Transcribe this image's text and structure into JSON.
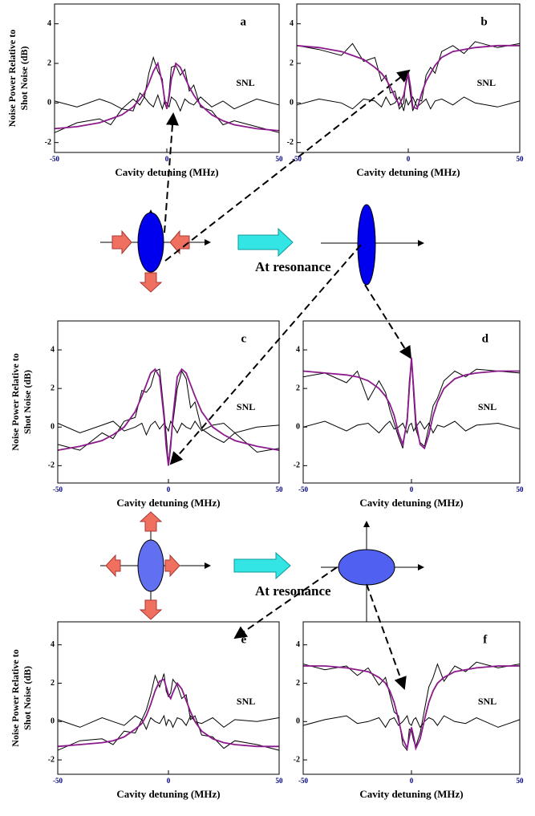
{
  "chart_data": [
    {
      "type": "line",
      "label": "a",
      "xlabel": "Cavity detuning (MHz)",
      "ylabel": [
        "Noise Power Relative to",
        "Shot Noise (dB)"
      ],
      "annotation": "SNL",
      "x": [
        -50,
        -40,
        -30,
        -25,
        -20,
        -15,
        -12,
        -10,
        -8,
        -6,
        -4,
        -2,
        -1,
        0,
        1,
        2,
        4,
        6,
        8,
        10,
        12,
        15,
        20,
        25,
        30,
        40,
        50
      ],
      "xlim": [
        -50,
        50
      ],
      "xticks": [
        -50,
        0,
        50
      ],
      "ylim": [
        -2.5,
        5
      ],
      "yticks": [
        -2,
        0,
        2,
        4
      ],
      "series": [
        {
          "color": "#000000",
          "values": [
            -1.5,
            -1.0,
            -0.8,
            -1.1,
            -0.3,
            -0.4,
            0.5,
            0.3,
            1.5,
            2.3,
            1.6,
            1.2,
            0.0,
            -0.3,
            0.5,
            1.8,
            1.9,
            1.4,
            1.7,
            0.6,
            0.9,
            -0.2,
            -0.4,
            -1.1,
            -0.9,
            -1.2,
            -1.5
          ]
        },
        {
          "color": "#000000",
          "values": [
            0.1,
            -0.2,
            0.2,
            0.0,
            -0.3,
            0.2,
            -0.1,
            0.3,
            0.0,
            -0.2,
            0.4,
            -0.3,
            0.1,
            0.0,
            -0.2,
            0.3,
            0.1,
            -0.4,
            0.2,
            0.0,
            -0.1,
            0.3,
            -0.2,
            0.1,
            -0.3,
            0.2,
            -0.1
          ]
        },
        {
          "color": "#8b1a8b",
          "values": [
            -1.3,
            -1.2,
            -1.0,
            -0.8,
            -0.6,
            -0.2,
            0.2,
            0.5,
            1.0,
            1.6,
            2.0,
            1.0,
            0.2,
            -0.3,
            0.3,
            1.2,
            2.0,
            1.8,
            1.3,
            0.8,
            0.4,
            -0.1,
            -0.6,
            -0.9,
            -1.1,
            -1.3,
            -1.4
          ]
        }
      ]
    },
    {
      "type": "line",
      "label": "b",
      "xlabel": "Cavity detuning (MHz)",
      "annotation": "SNL",
      "x": [
        -50,
        -40,
        -30,
        -25,
        -20,
        -15,
        -12,
        -10,
        -8,
        -6,
        -4,
        -2,
        -1,
        0,
        1,
        2,
        4,
        6,
        8,
        10,
        12,
        15,
        20,
        25,
        30,
        40,
        50
      ],
      "xlim": [
        -50,
        50
      ],
      "xticks": [
        -50,
        0,
        50
      ],
      "ylim": [
        -2.5,
        5
      ],
      "yticks": [
        -2,
        0,
        2,
        4
      ],
      "series": [
        {
          "color": "#000000",
          "values": [
            2.9,
            2.7,
            2.4,
            3.0,
            2.1,
            2.3,
            1.1,
            1.4,
            0.5,
            0.6,
            -0.3,
            0.0,
            1.2,
            1.3,
            0.4,
            -0.4,
            0.2,
            0.1,
            1.4,
            1.8,
            1.5,
            2.6,
            2.9,
            2.5,
            3.1,
            2.8,
            3.0
          ]
        },
        {
          "color": "#000000",
          "values": [
            -0.1,
            0.2,
            0.0,
            -0.3,
            0.2,
            0.1,
            -0.2,
            0.3,
            -0.1,
            0.0,
            0.3,
            -0.4,
            0.2,
            -0.1,
            0.1,
            0.3,
            -0.2,
            0.0,
            0.2,
            -0.3,
            0.1,
            0.2,
            -0.1,
            0.3,
            0.0,
            -0.2,
            0.1
          ]
        },
        {
          "color": "#8b1a8b",
          "values": [
            2.9,
            2.8,
            2.6,
            2.4,
            2.2,
            1.8,
            1.5,
            1.2,
            0.8,
            0.3,
            -0.1,
            0.4,
            1.0,
            1.5,
            0.8,
            -0.2,
            -0.3,
            0.5,
            1.1,
            1.5,
            1.9,
            2.3,
            2.6,
            2.7,
            2.8,
            2.9,
            2.9
          ]
        }
      ]
    },
    {
      "type": "line",
      "label": "c",
      "xlabel": "Cavity detuning (MHz)",
      "ylabel": [
        "Noise Power Relative to",
        "Shot Noise (dB)"
      ],
      "annotation": "SNL",
      "x": [
        -50,
        -40,
        -30,
        -25,
        -20,
        -15,
        -12,
        -10,
        -8,
        -6,
        -4,
        -2,
        -1,
        0,
        1,
        2,
        4,
        6,
        8,
        10,
        12,
        15,
        20,
        25,
        30,
        40,
        50
      ],
      "xlim": [
        -50,
        50
      ],
      "xticks": [
        -50,
        0,
        50
      ],
      "ylim": [
        -2.9,
        5.5
      ],
      "yticks": [
        -2,
        0,
        2,
        4
      ],
      "series": [
        {
          "color": "#000000",
          "values": [
            -0.9,
            -1.2,
            -0.3,
            -0.6,
            0.3,
            0.5,
            1.9,
            1.8,
            2.1,
            2.9,
            3.0,
            0.8,
            -0.4,
            -1.9,
            -0.7,
            0.2,
            2.0,
            2.9,
            2.5,
            1.0,
            1.3,
            -0.1,
            -0.5,
            -0.8,
            -0.3,
            -1.3,
            -1.1
          ]
        },
        {
          "color": "#000000",
          "values": [
            0.2,
            -0.3,
            0.1,
            0.3,
            -0.2,
            0.0,
            0.2,
            -0.4,
            0.1,
            0.3,
            -0.1,
            0.2,
            0.0,
            -0.2,
            0.3,
            0.1,
            -0.3,
            0.2,
            0.0,
            -0.1,
            0.3,
            -0.2,
            0.1,
            0.2,
            -0.3,
            0.0,
            0.1
          ]
        },
        {
          "color": "#8b1a8b",
          "values": [
            -1.2,
            -1.0,
            -0.7,
            -0.4,
            0.0,
            0.8,
            1.6,
            2.2,
            2.8,
            3.0,
            2.6,
            0.5,
            -1.0,
            -2.0,
            -1.0,
            0.5,
            2.6,
            3.0,
            2.8,
            2.2,
            1.6,
            0.8,
            0.0,
            -0.4,
            -0.7,
            -1.0,
            -1.2
          ]
        }
      ]
    },
    {
      "type": "line",
      "label": "d",
      "xlabel": "Cavity detuning (MHz)",
      "annotation": "SNL",
      "x": [
        -50,
        -40,
        -30,
        -25,
        -20,
        -15,
        -12,
        -10,
        -8,
        -6,
        -4,
        -2,
        -1,
        0,
        1,
        2,
        4,
        6,
        8,
        10,
        12,
        15,
        20,
        25,
        30,
        40,
        50
      ],
      "xlim": [
        -50,
        50
      ],
      "xticks": [
        -50,
        0,
        50
      ],
      "ylim": [
        -2.9,
        5.5
      ],
      "yticks": [
        -2,
        0,
        2,
        4
      ],
      "series": [
        {
          "color": "#000000",
          "values": [
            2.6,
            2.8,
            2.3,
            2.9,
            1.4,
            2.4,
            1.8,
            0.9,
            0.2,
            -0.5,
            -1.1,
            0.5,
            2.4,
            3.5,
            1.6,
            -0.1,
            -0.8,
            -1.0,
            0.0,
            1.1,
            1.5,
            2.4,
            2.9,
            2.6,
            3.0,
            2.9,
            2.8
          ]
        },
        {
          "color": "#000000",
          "values": [
            0.0,
            0.3,
            -0.2,
            0.1,
            0.2,
            -0.3,
            0.1,
            0.3,
            -0.1,
            0.0,
            0.2,
            -0.3,
            0.1,
            0.2,
            -0.2,
            0.0,
            0.3,
            -0.1,
            0.2,
            -0.3,
            0.1,
            0.0,
            0.3,
            -0.2,
            0.1,
            0.2,
            -0.1
          ]
        },
        {
          "color": "#8b1a8b",
          "values": [
            2.9,
            2.8,
            2.7,
            2.6,
            2.4,
            2.0,
            1.6,
            1.2,
            0.6,
            -0.3,
            -0.9,
            0.3,
            2.0,
            3.6,
            2.0,
            0.3,
            -0.9,
            -1.1,
            -0.4,
            0.6,
            1.3,
            2.0,
            2.5,
            2.7,
            2.8,
            2.9,
            2.9
          ]
        }
      ]
    },
    {
      "type": "line",
      "label": "e",
      "xlabel": "Cavity detuning (MHz)",
      "ylabel": [
        "Noise Power Relative to",
        "Shot Noise (dB)"
      ],
      "annotation": "SNL",
      "x": [
        -50,
        -40,
        -30,
        -25,
        -20,
        -15,
        -12,
        -10,
        -8,
        -6,
        -4,
        -2,
        -1,
        0,
        1,
        2,
        4,
        6,
        8,
        10,
        12,
        15,
        20,
        25,
        30,
        40,
        50
      ],
      "xlim": [
        -50,
        50
      ],
      "xticks": [
        -50,
        0,
        50
      ],
      "ylim": [
        -2.75,
        5.2
      ],
      "yticks": [
        -2,
        0,
        2,
        4
      ],
      "series": [
        {
          "color": "#000000",
          "values": [
            -1.5,
            -1.0,
            -0.9,
            -1.2,
            -0.5,
            -0.6,
            0.1,
            0.6,
            1.4,
            2.4,
            1.8,
            2.5,
            1.6,
            1.3,
            1.5,
            2.2,
            1.9,
            1.2,
            1.4,
            0.1,
            0.3,
            -0.7,
            -0.8,
            -1.4,
            -1.0,
            -1.2,
            -1.5
          ]
        },
        {
          "color": "#000000",
          "values": [
            0.1,
            -0.3,
            0.2,
            0.0,
            -0.2,
            0.3,
            0.1,
            -0.4,
            0.2,
            0.0,
            -0.1,
            0.3,
            -0.2,
            0.1,
            0.0,
            -0.3,
            0.2,
            0.1,
            -0.2,
            0.3,
            0.0,
            -0.1,
            0.2,
            -0.3,
            0.1,
            0.0,
            0.2
          ]
        },
        {
          "color": "#8b1a8b",
          "values": [
            -1.3,
            -1.2,
            -1.1,
            -1.0,
            -0.8,
            -0.4,
            -0.1,
            0.3,
            0.9,
            1.6,
            2.1,
            2.2,
            1.8,
            1.4,
            1.2,
            1.5,
            2.0,
            1.7,
            1.1,
            0.5,
            0.0,
            -0.5,
            -0.9,
            -1.1,
            -1.2,
            -1.3,
            -1.3
          ]
        }
      ]
    },
    {
      "type": "line",
      "label": "f",
      "xlabel": "Cavity detuning (MHz)",
      "annotation": "SNL",
      "x": [
        -50,
        -40,
        -30,
        -25,
        -20,
        -15,
        -12,
        -10,
        -8,
        -6,
        -4,
        -2,
        -1,
        0,
        1,
        2,
        4,
        6,
        8,
        10,
        12,
        15,
        20,
        25,
        30,
        40,
        50
      ],
      "xlim": [
        -50,
        50
      ],
      "xticks": [
        -50,
        0,
        50
      ],
      "ylim": [
        -2.75,
        5.2
      ],
      "yticks": [
        -2,
        0,
        2,
        4
      ],
      "series": [
        {
          "color": "#000000",
          "values": [
            3.0,
            2.7,
            2.9,
            2.4,
            2.8,
            1.9,
            2.3,
            1.4,
            0.5,
            0.3,
            -1.2,
            -1.5,
            -0.4,
            -0.5,
            -1.0,
            -1.3,
            -0.6,
            0.6,
            1.8,
            2.3,
            3.0,
            2.1,
            2.9,
            2.6,
            3.1,
            2.8,
            3.0
          ]
        },
        {
          "color": "#000000",
          "values": [
            -0.2,
            0.1,
            0.3,
            -0.1,
            0.0,
            0.2,
            -0.3,
            0.1,
            0.2,
            -0.2,
            0.0,
            0.3,
            -0.1,
            -0.2,
            0.1,
            0.2,
            -0.3,
            0.0,
            0.2,
            0.1,
            -0.2,
            0.3,
            0.0,
            -0.1,
            0.2,
            -0.3,
            0.1
          ]
        },
        {
          "color": "#8b1a8b",
          "values": [
            2.9,
            2.9,
            2.8,
            2.7,
            2.6,
            2.3,
            2.0,
            1.6,
            1.0,
            0.1,
            -0.9,
            -1.4,
            -0.8,
            -0.3,
            -0.8,
            -1.4,
            -0.9,
            0.1,
            1.0,
            1.6,
            2.0,
            2.3,
            2.6,
            2.7,
            2.8,
            2.9,
            2.9
          ]
        }
      ]
    }
  ],
  "diagram": {
    "labels": [
      "At resonance",
      "At resonance"
    ]
  }
}
